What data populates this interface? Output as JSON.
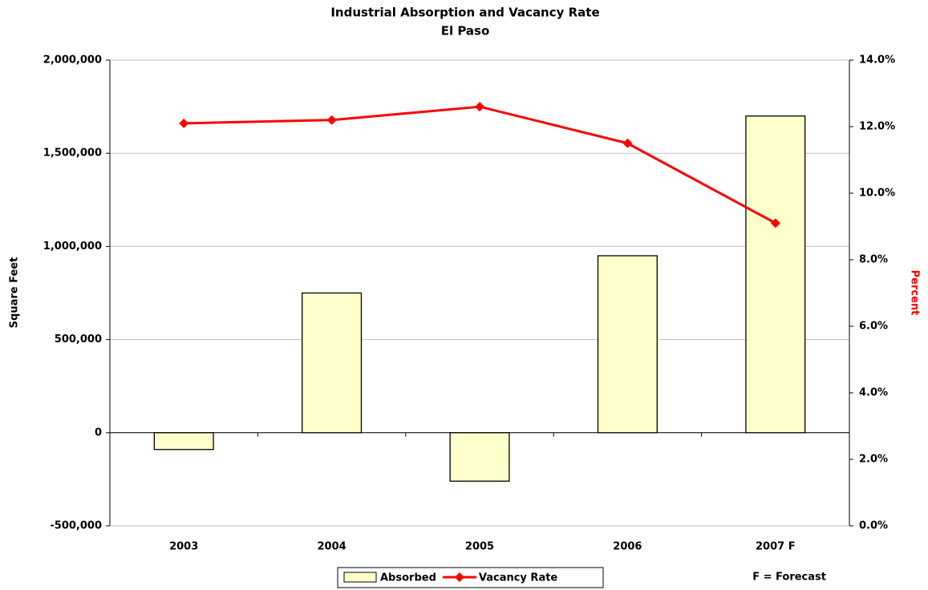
{
  "chart_data": {
    "type": "bar",
    "title": "Industrial Absorption and Vacancy Rate",
    "subtitle": "El Paso",
    "y_label": "Square Feet",
    "y2_label": "Percent",
    "annotation": "F = Forecast",
    "categories": [
      "2003",
      "2004",
      "2005",
      "2006",
      "2007 F"
    ],
    "series": [
      {
        "name": "Absorbed",
        "type": "bar",
        "color": "#ffffcc",
        "values": [
          -90000,
          750000,
          -260000,
          950000,
          1700000
        ]
      },
      {
        "name": "Vacancy Rate",
        "type": "line",
        "axis": "y2",
        "color": "#ff0000",
        "values": [
          12.1,
          12.2,
          12.6,
          11.5,
          9.1
        ]
      }
    ],
    "ylim": [
      -500000,
      2000000
    ],
    "yticks": [
      {
        "value": -500000,
        "label": "-500,000"
      },
      0,
      {
        "value": 500000,
        "label": "500,000"
      },
      {
        "value": 1000000,
        "label": "1,000,000"
      },
      {
        "value": 1500000,
        "label": "1,500,000"
      },
      {
        "value": 2000000,
        "label": "2,000,000"
      }
    ],
    "y2lim": [
      0,
      14
    ],
    "y2ticks": [
      {
        "value": 0,
        "label": "0.0%"
      },
      {
        "value": 2,
        "label": "2.0%"
      },
      {
        "value": 4,
        "label": "4.0%"
      },
      {
        "value": 6,
        "label": "6.0%"
      },
      {
        "value": 8,
        "label": "8.0%"
      },
      {
        "value": 10,
        "label": "10.0%"
      },
      {
        "value": 12,
        "label": "12.0%"
      },
      {
        "value": 14,
        "label": "14.0%"
      }
    ],
    "y2_color": "#ff0000",
    "grid": true,
    "legend": "bottom"
  }
}
